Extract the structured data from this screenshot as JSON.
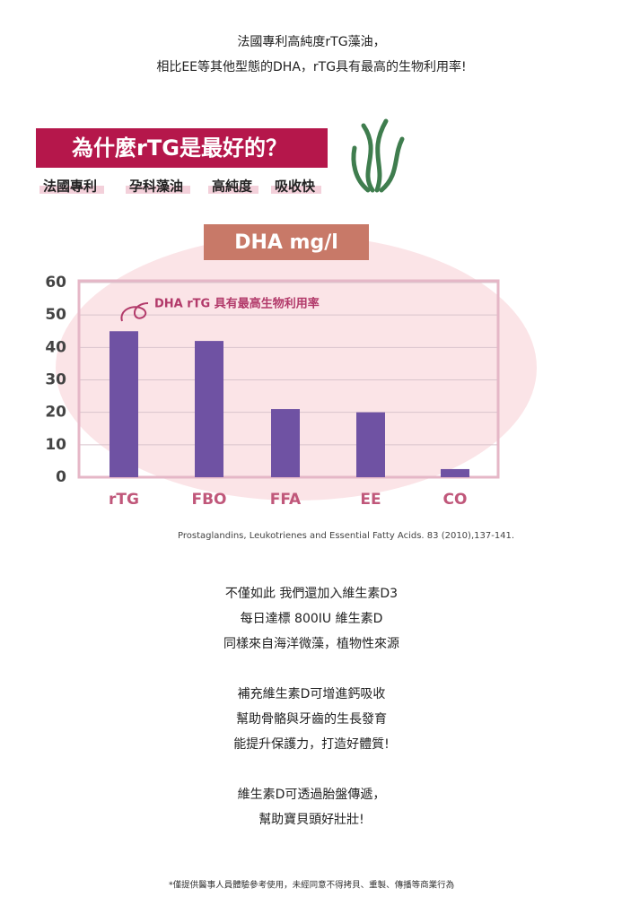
{
  "intro": [
    "法國專利高純度rTG藻油，",
    "相比EE等其他型態的DHA，rTG具有最高的生物利用率!"
  ],
  "banner": {
    "title": "為什麼rTG是最好的？",
    "tags": [
      "法國專利",
      "孕科藻油",
      "高純度",
      "吸收快"
    ]
  },
  "chart_data": {
    "type": "bar",
    "title": "DHA mg/l",
    "annotation": "DHA rTG 具有最高生物利用率",
    "categories": [
      "rTG",
      "FBO",
      "FFA",
      "EE",
      "CO"
    ],
    "values": [
      45,
      42,
      21,
      20,
      2.5
    ],
    "color": "#6f52a3",
    "ylim": [
      0,
      60
    ],
    "yticks": [
      0,
      10,
      20,
      30,
      40,
      50,
      60
    ],
    "grid": true
  },
  "citation": "Prostaglandins, Leukotrienes and Essential Fatty Acids. 83 (2010),137-141.",
  "paragraphs": [
    [
      "不僅如此 我們還加入維生素D3",
      "每日達標 800IU 維生素D",
      "同樣來自海洋微藻，植物性來源"
    ],
    [
      "補充維生素D可增進鈣吸收",
      "幫助骨骼與牙齒的生長發育",
      "能提升保護力，打造好體質!"
    ],
    [
      "維生素D可透過胎盤傳遞，",
      "幫助寶貝頭好壯壯!"
    ]
  ],
  "footnote": "*僅提供醫事人員體驗參考使用，未經同意不得拷貝、重製、傳播等商業行為"
}
